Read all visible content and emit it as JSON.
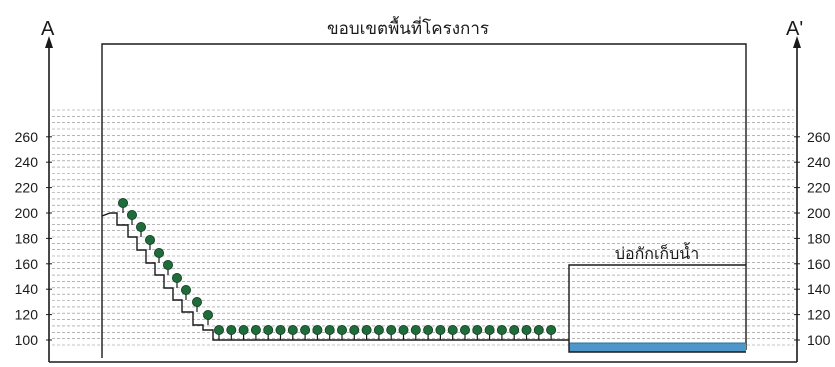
{
  "section": {
    "left_marker": "A",
    "right_marker": "A'"
  },
  "boundary_label": "ขอบเขตพื้นที่โครงการ",
  "pond_label": "บ่อกักเก็บน้ำ",
  "elevation_ticks": [
    260,
    240,
    220,
    200,
    180,
    160,
    140,
    120,
    100
  ],
  "colors": {
    "outline": "#1a1a1a",
    "gridline": "#8a8a8a",
    "tree_canopy": "#1f6b3a",
    "water": "#4f97c9"
  }
}
